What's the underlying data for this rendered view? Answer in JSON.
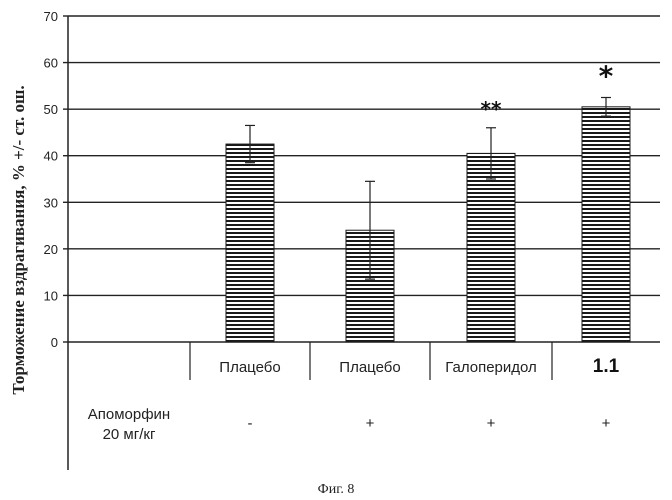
{
  "chart_data": {
    "type": "bar",
    "ylabel": "Торможение вздрагивания, % +/- ст. ош.",
    "ylim": [
      0,
      70
    ],
    "yticks": [
      0,
      10,
      20,
      30,
      40,
      50,
      60,
      70
    ],
    "grid": true,
    "categories": [
      "Плацебо",
      "Плацебо",
      "Галоперидол",
      "1.1"
    ],
    "values": [
      42.5,
      24,
      40.5,
      50.5
    ],
    "errors": [
      4,
      10.5,
      5.5,
      2
    ],
    "significance": [
      "",
      "",
      "**",
      "*"
    ],
    "condition_label": [
      "Апоморфин",
      "20 мг/кг"
    ],
    "conditions": [
      "-",
      "+",
      "+",
      "+"
    ]
  },
  "caption": "Фиг. 8"
}
